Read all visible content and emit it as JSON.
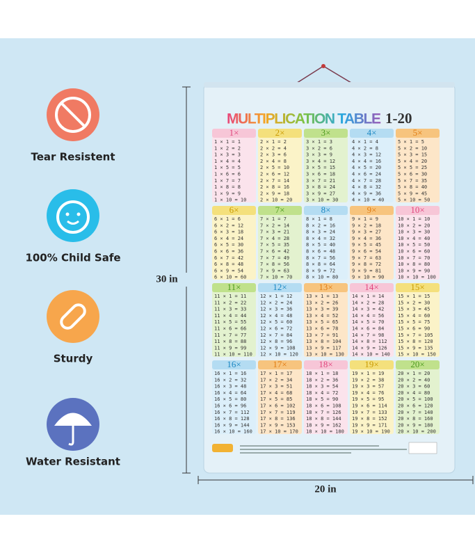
{
  "features": [
    "Tear Resistent",
    "100% Child Safe",
    "Sturdy",
    "Water Resistant"
  ],
  "dimensions": {
    "height": "30 in",
    "width": "20 in"
  },
  "poster": {
    "title": "MULTIPLICATION TABLE",
    "range": "1-20",
    "tables": [
      {
        "header": "1×",
        "rows": [
          "1 × 1 = 1",
          "1 × 2 = 2",
          "1 × 3 = 3",
          "1 × 4 = 4",
          "1 × 5 = 5",
          "1 × 6 = 6",
          "1 × 7 = 7",
          "1 × 8 = 8",
          "1 × 9 = 9",
          "1 × 10 = 10"
        ]
      },
      {
        "header": "2×",
        "rows": [
          "2 × 1 = 2",
          "2 × 2 = 4",
          "2 × 3 = 6",
          "2 × 4 = 8",
          "2 × 5 = 10",
          "2 × 6 = 12",
          "2 × 7 = 14",
          "2 × 8 = 16",
          "2 × 9 = 18",
          "2 × 10 = 20"
        ]
      },
      {
        "header": "3×",
        "rows": [
          "3 × 1 = 3",
          "3 × 2 = 6",
          "3 × 3 = 9",
          "3 × 4 = 12",
          "3 × 5 = 15",
          "3 × 6 = 18",
          "3 × 7 = 21",
          "3 × 8 = 24",
          "3 × 9 = 27",
          "3 × 10 = 30"
        ]
      },
      {
        "header": "4×",
        "rows": [
          "4 × 1 = 4",
          "4 × 2 = 8",
          "4 × 3 = 12",
          "4 × 4 = 16",
          "4 × 5 = 20",
          "4 × 6 = 24",
          "4 × 7 = 28",
          "4 × 8 = 32",
          "4 × 9 = 36",
          "4 × 10 = 40"
        ]
      },
      {
        "header": "5×",
        "rows": [
          "5 × 1 = 5",
          "5 × 2 = 10",
          "5 × 3 = 15",
          "5 × 4 = 20",
          "5 × 5 = 25",
          "5 × 6 = 30",
          "5 × 7 = 35",
          "5 × 8 = 40",
          "5 × 9 = 45",
          "5 × 10 = 50"
        ]
      },
      {
        "header": "6×",
        "rows": [
          "6 × 1 = 6",
          "6 × 2 = 12",
          "6 × 3 = 18",
          "6 × 4 = 24",
          "6 × 5 = 30",
          "6 × 6 = 36",
          "6 × 7 = 42",
          "6 × 8 = 48",
          "6 × 9 = 54",
          "6 × 10 = 60"
        ]
      },
      {
        "header": "7×",
        "rows": [
          "7 × 1 = 7",
          "7 × 2 = 14",
          "7 × 3 = 21",
          "7 × 4 = 28",
          "7 × 5 = 35",
          "7 × 6 = 42",
          "7 × 7 = 49",
          "7 × 8 = 56",
          "7 × 9 = 63",
          "7 × 10 = 70"
        ]
      },
      {
        "header": "8×",
        "rows": [
          "8 × 1 = 8",
          "8 × 2 = 16",
          "8 × 3 = 24",
          "8 × 4 = 32",
          "8 × 5 = 40",
          "8 × 6 = 48",
          "8 × 7 = 56",
          "8 × 8 = 64",
          "8 × 9 = 72",
          "8 × 10 = 80"
        ]
      },
      {
        "header": "9×",
        "rows": [
          "9 × 1 = 9",
          "9 × 2 = 18",
          "9 × 3 = 27",
          "9 × 4 = 36",
          "9 × 5 = 45",
          "9 × 6 = 54",
          "9 × 7 = 63",
          "9 × 8 = 72",
          "9 × 9 = 81",
          "9 × 10 = 90"
        ]
      },
      {
        "header": "10×",
        "rows": [
          "10 × 1 = 10",
          "10 × 2 = 20",
          "10 × 3 = 30",
          "10 × 4 = 40",
          "10 × 5 = 50",
          "10 × 6 = 60",
          "10 × 7 = 70",
          "10 × 8 = 80",
          "10 × 9 = 90",
          "10 × 10 = 100"
        ]
      },
      {
        "header": "11×",
        "rows": [
          "11 × 1 = 11",
          "11 × 2 = 22",
          "11 × 3 = 33",
          "11 × 4 = 44",
          "11 × 5 = 55",
          "11 × 6 = 66",
          "11 × 7 = 77",
          "11 × 8 = 88",
          "11 × 9 = 99",
          "11 × 10 = 110"
        ]
      },
      {
        "header": "12×",
        "rows": [
          "12 × 1 = 12",
          "12 × 2 = 24",
          "12 × 3 = 36",
          "12 × 4 = 48",
          "12 × 5 = 60",
          "12 × 6 = 72",
          "12 × 7 = 84",
          "12 × 8 = 96",
          "12 × 9 = 108",
          "12 × 10 = 120"
        ]
      },
      {
        "header": "13×",
        "rows": [
          "13 × 1 = 13",
          "13 × 2 = 26",
          "13 × 3 = 39",
          "13 × 4 = 52",
          "13 × 5 = 65",
          "13 × 6 = 78",
          "13 × 7 = 91",
          "13 × 8 = 104",
          "13 × 9 = 117",
          "13 × 10 = 130"
        ]
      },
      {
        "header": "14×",
        "rows": [
          "14 × 1 = 14",
          "14 × 2 = 28",
          "14 × 3 = 42",
          "14 × 4 = 56",
          "14 × 5 = 70",
          "14 × 6 = 84",
          "14 × 7 = 98",
          "14 × 8 = 112",
          "14 × 9 = 126",
          "14 × 10 = 140"
        ]
      },
      {
        "header": "15×",
        "rows": [
          "15 × 1 = 15",
          "15 × 2 = 30",
          "15 × 3 = 45",
          "15 × 4 = 60",
          "15 × 5 = 75",
          "15 × 6 = 90",
          "15 × 7 = 105",
          "15 × 8 = 120",
          "15 × 9 = 135",
          "15 × 10 = 150"
        ]
      },
      {
        "header": "16×",
        "rows": [
          "16 × 1 = 16",
          "16 × 2 = 32",
          "16 × 3 = 48",
          "16 × 4 = 64",
          "16 × 5 = 80",
          "16 × 6 = 96",
          "16 × 7 = 112",
          "16 × 8 = 128",
          "16 × 9 = 144",
          "16 × 10 = 160"
        ]
      },
      {
        "header": "17×",
        "rows": [
          "17 × 1 = 17",
          "17 × 2 = 34",
          "17 × 3 = 51",
          "17 × 4 = 68",
          "17 × 5 = 85",
          "17 × 6 = 102",
          "17 × 7 = 119",
          "17 × 8 = 136",
          "17 × 9 = 153",
          "17 × 10 = 170"
        ]
      },
      {
        "header": "18×",
        "rows": [
          "18 × 1 = 18",
          "18 × 2 = 36",
          "18 × 3 = 54",
          "18 × 4 = 72",
          "18 × 5 = 90",
          "18 × 6 = 108",
          "18 × 7 = 126",
          "18 × 8 = 144",
          "18 × 9 = 162",
          "18 × 10 = 180"
        ]
      },
      {
        "header": "19×",
        "rows": [
          "19 × 1 = 19",
          "19 × 2 = 38",
          "19 × 3 = 57",
          "19 × 4 = 76",
          "19 × 5 = 95",
          "19 × 6 = 114",
          "19 × 7 = 133",
          "19 × 8 = 152",
          "19 × 9 = 171",
          "19 × 10 = 190"
        ]
      },
      {
        "header": "20×",
        "rows": [
          "20 × 1 = 20",
          "20 × 2 = 40",
          "20 × 3 = 60",
          "20 × 4 = 80",
          "20 × 5 = 100",
          "20 × 6 = 120",
          "20 × 7 = 140",
          "20 × 8 = 160",
          "20 × 9 = 180",
          "20 × 10 = 200"
        ]
      }
    ]
  }
}
